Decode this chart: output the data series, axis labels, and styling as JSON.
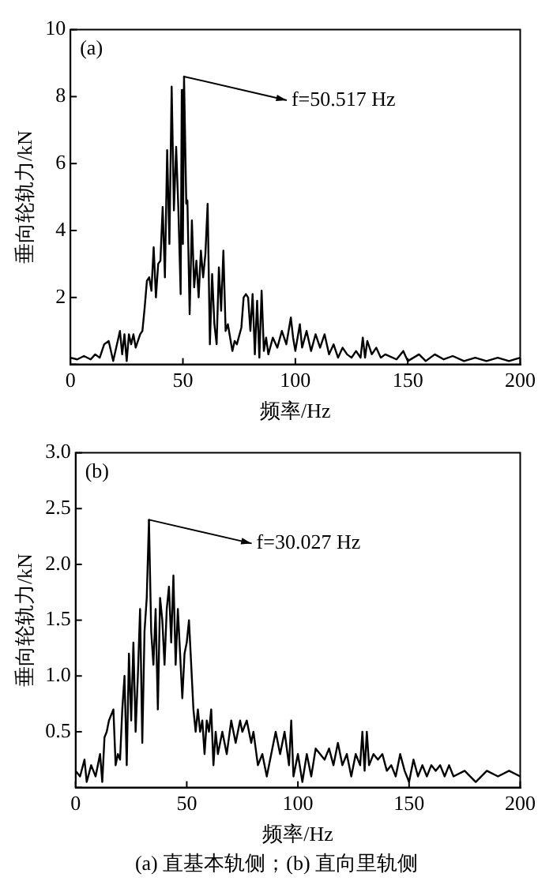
{
  "chart_data": [
    {
      "type": "line",
      "title": "(a)",
      "xlabel": "频率/Hz",
      "ylabel": "垂向轮轨力/kN",
      "xlim": [
        0,
        200
      ],
      "xticks": [
        0,
        50,
        100,
        150,
        200
      ],
      "ylim": [
        0,
        10
      ],
      "yticks": [
        {
          "value": 0,
          "label": null
        },
        2,
        4,
        6,
        8,
        10
      ],
      "grid": false,
      "legend": false,
      "marker": "none",
      "line_style": "solid",
      "annotations": [
        {
          "text": "f=50.517 Hz",
          "x": 50.5,
          "y": 8.6
        }
      ],
      "series": [
        {
          "color": "#000000",
          "x": [
            0,
            3,
            6,
            9,
            11,
            13,
            15,
            17,
            19,
            21,
            22,
            23,
            24,
            25,
            26,
            27,
            28,
            29,
            31,
            32,
            33,
            34,
            35,
            36,
            37,
            38,
            39,
            40,
            41,
            42,
            43,
            44,
            45,
            46,
            47,
            48,
            49,
            49.5,
            50,
            50.5,
            51.5,
            52,
            53,
            54,
            55,
            56,
            57,
            58,
            59,
            60,
            61,
            62,
            63,
            64,
            65,
            66,
            67,
            68,
            69,
            70,
            71,
            72,
            73,
            74,
            76,
            77,
            78,
            79,
            80,
            81,
            82,
            83,
            84,
            85,
            86,
            87,
            88,
            90,
            92,
            94,
            96,
            98,
            99,
            100,
            102,
            103,
            105,
            107,
            109,
            111,
            113,
            115,
            117,
            119,
            121,
            123,
            125,
            127,
            129,
            130,
            131,
            132,
            134,
            136,
            138,
            140,
            145,
            148,
            150,
            155,
            158,
            162,
            166,
            170,
            175,
            180,
            185,
            190,
            195,
            200
          ],
          "values": [
            0.2,
            0.15,
            0.25,
            0.15,
            0.3,
            0.2,
            0.6,
            0.7,
            0.1,
            0.7,
            1.0,
            0.3,
            0.9,
            0.1,
            0.9,
            0.6,
            0.9,
            0.5,
            0.9,
            1.0,
            1.7,
            2.5,
            2.6,
            2.2,
            3.5,
            2.0,
            3.0,
            3.1,
            4.7,
            2.6,
            6.4,
            3.6,
            8.3,
            4.6,
            6.5,
            4.6,
            2.1,
            8.2,
            3.6,
            8.6,
            4.8,
            4.9,
            1.5,
            4.3,
            2.3,
            3.1,
            2.0,
            3.4,
            2.6,
            3.3,
            4.8,
            0.6,
            2.7,
            1.2,
            0.6,
            2.9,
            1.6,
            3.4,
            1.0,
            1.2,
            0.8,
            0.4,
            0.7,
            0.6,
            1.1,
            2.0,
            2.1,
            2.0,
            1.0,
            2.1,
            0.3,
            1.9,
            0.2,
            2.2,
            0.4,
            0.8,
            0.3,
            0.8,
            0.5,
            1.0,
            0.6,
            1.4,
            0.8,
            0.4,
            1.2,
            0.5,
            1.0,
            0.4,
            0.9,
            0.5,
            0.9,
            0.3,
            0.6,
            0.2,
            0.5,
            0.3,
            0.2,
            0.4,
            0.2,
            0.8,
            0.2,
            0.7,
            0.3,
            0.5,
            0.2,
            0.3,
            0.15,
            0.4,
            0.1,
            0.3,
            0.1,
            0.3,
            0.15,
            0.25,
            0.1,
            0.2,
            0.1,
            0.2,
            0.1,
            0.2
          ]
        }
      ]
    },
    {
      "type": "line",
      "title": "(b)",
      "xlabel": "频率/Hz",
      "ylabel": "垂向轮轨力/kN",
      "xlim": [
        0,
        200
      ],
      "xticks": [
        0,
        50,
        100,
        150,
        200
      ],
      "ylim": [
        0,
        3
      ],
      "yticks": [
        {
          "value": 0,
          "label": null
        },
        {
          "value": 0.5,
          "label": "0.5"
        },
        {
          "value": 1,
          "label": "1.0"
        },
        {
          "value": 1.5,
          "label": "1.5"
        },
        {
          "value": 2,
          "label": "2.0"
        },
        {
          "value": 2.5,
          "label": "2.5"
        },
        {
          "value": 3,
          "label": "3.0"
        }
      ],
      "grid": false,
      "legend": false,
      "marker": "none",
      "line_style": "solid",
      "annotations": [
        {
          "text": "f=30.027 Hz",
          "x": 33,
          "y": 2.4
        },
        "(a) 直基本轨侧；(b) 直向里轨侧"
      ],
      "series": [
        {
          "color": "#000000",
          "x": [
            0,
            2,
            4,
            5,
            7,
            9,
            11,
            12,
            13,
            14,
            15,
            17,
            18,
            19,
            20,
            21,
            22,
            23,
            24,
            25,
            26,
            27,
            28,
            29,
            30,
            31,
            32,
            33,
            34,
            35,
            36,
            37,
            38,
            39,
            40,
            41,
            42,
            43,
            44,
            45,
            46,
            47,
            48,
            49,
            50,
            51,
            52,
            53,
            54,
            55,
            56,
            57,
            58,
            59,
            60,
            61,
            62,
            63,
            64,
            66,
            68,
            70,
            72,
            74,
            75,
            77,
            79,
            80,
            82,
            84,
            86,
            88,
            90,
            92,
            94,
            96,
            97,
            98,
            100,
            102,
            104,
            106,
            108,
            110,
            112,
            114,
            116,
            118,
            120,
            122,
            124,
            126,
            128,
            129,
            130,
            131,
            132,
            134,
            136,
            138,
            140,
            142,
            144,
            146,
            148,
            150,
            152,
            154,
            156,
            158,
            160,
            162,
            164,
            166,
            168,
            170,
            175,
            180,
            185,
            190,
            195,
            200
          ],
          "values": [
            0.15,
            0.1,
            0.25,
            0.05,
            0.2,
            0.1,
            0.3,
            0.05,
            0.45,
            0.5,
            0.6,
            0.7,
            0.2,
            0.3,
            0.25,
            0.7,
            1.0,
            0.2,
            1.2,
            0.6,
            1.3,
            0.5,
            1.0,
            1.6,
            0.4,
            1.4,
            1.7,
            2.4,
            1.4,
            1.1,
            1.6,
            0.7,
            1.7,
            1.5,
            1.1,
            1.6,
            1.8,
            1.3,
            1.9,
            1.1,
            1.6,
            1.2,
            0.8,
            1.2,
            1.3,
            1.5,
            1.1,
            0.7,
            0.5,
            0.7,
            0.5,
            0.6,
            0.3,
            0.6,
            0.5,
            0.7,
            0.2,
            0.5,
            0.3,
            0.5,
            0.3,
            0.6,
            0.4,
            0.6,
            0.5,
            0.6,
            0.4,
            0.5,
            0.2,
            0.3,
            0.1,
            0.3,
            0.5,
            0.3,
            0.5,
            0.2,
            0.6,
            0.1,
            0.3,
            0.05,
            0.3,
            0.1,
            0.35,
            0.3,
            0.25,
            0.35,
            0.2,
            0.4,
            0.2,
            0.3,
            0.1,
            0.3,
            0.2,
            0.5,
            0.15,
            0.5,
            0.2,
            0.3,
            0.25,
            0.3,
            0.15,
            0.2,
            0.1,
            0.3,
            0.15,
            0.05,
            0.25,
            0.1,
            0.2,
            0.1,
            0.2,
            0.15,
            0.2,
            0.1,
            0.2,
            0.1,
            0.15,
            0.05,
            0.15,
            0.1,
            0.15,
            0.1
          ]
        }
      ]
    }
  ]
}
